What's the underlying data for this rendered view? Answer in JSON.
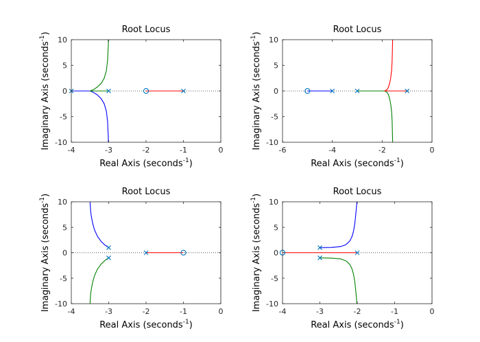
{
  "figure": {
    "background": "#ffffff"
  },
  "colors": {
    "axis": "#262626",
    "tick_label": "#262626",
    "zero_line": "#262626",
    "branch_blue": "#0000ff",
    "branch_green": "#008000",
    "branch_red": "#ff0000",
    "marker": "#0072bd"
  },
  "icons": {
    "pole": "x-mark",
    "zero": "circle-mark"
  },
  "chart_data": [
    {
      "type": "line",
      "title": "Root Locus",
      "xlabel": "Real Axis (seconds",
      "ylabel": "Imaginary Axis (seconds",
      "axis_unit_exponent": "-1",
      "xlim": [
        -4,
        0
      ],
      "ylim": [
        -10,
        10
      ],
      "xticks": [
        -4,
        -3,
        -2,
        -1,
        0
      ],
      "yticks": [
        -10,
        -5,
        0,
        5,
        10
      ],
      "poles": [
        [
          -4,
          0
        ],
        [
          -3,
          0
        ],
        [
          -1,
          0
        ]
      ],
      "zeros": [
        [
          -2,
          0
        ]
      ],
      "series": [
        {
          "color": "blue",
          "x": [
            -4,
            -3.85,
            -3.7,
            -3.56,
            -3.5,
            -3.4,
            -3.3,
            -3.2,
            -3.12,
            -3.06,
            -3.03,
            -3.02,
            -3.01,
            -3.01
          ],
          "y": [
            0,
            0,
            0,
            0,
            0,
            -0.3,
            -0.8,
            -1.5,
            -2.5,
            -4,
            -6,
            -7.5,
            -9,
            -10
          ]
        },
        {
          "color": "green",
          "x": [
            -3,
            -3.15,
            -3.3,
            -3.44,
            -3.5,
            -3.4,
            -3.3,
            -3.2,
            -3.12,
            -3.06,
            -3.03,
            -3.02,
            -3.01,
            -3.01
          ],
          "y": [
            0,
            0,
            0,
            0,
            0,
            0.3,
            0.8,
            1.5,
            2.5,
            4,
            6,
            7.5,
            9,
            10
          ]
        },
        {
          "color": "red",
          "x": [
            -1,
            -1.5,
            -2
          ],
          "y": [
            0,
            0,
            0
          ]
        }
      ]
    },
    {
      "type": "line",
      "title": "Root Locus",
      "xlabel": "Real Axis (seconds",
      "ylabel": "Imaginary Axis (seconds",
      "axis_unit_exponent": "-1",
      "xlim": [
        -6,
        0
      ],
      "ylim": [
        -10,
        10
      ],
      "xticks": [
        -6,
        -4,
        -2,
        0
      ],
      "yticks": [
        -10,
        -5,
        0,
        5,
        10
      ],
      "poles": [
        [
          -4,
          0
        ],
        [
          -3,
          0
        ],
        [
          -1,
          0
        ]
      ],
      "zeros": [
        [
          -5,
          0
        ]
      ],
      "series": [
        {
          "color": "blue",
          "x": [
            -4,
            -4.5,
            -5
          ],
          "y": [
            0,
            0,
            0
          ]
        },
        {
          "color": "green",
          "x": [
            -3,
            -2.6,
            -2.2,
            -2.0,
            -1.9,
            -1.8,
            -1.75,
            -1.7,
            -1.66,
            -1.62,
            -1.6,
            -1.58
          ],
          "y": [
            0,
            0,
            0,
            0,
            0,
            -0.3,
            -0.7,
            -1.5,
            -2.5,
            -4,
            -6,
            -10
          ]
        },
        {
          "color": "red",
          "x": [
            -1,
            -1.4,
            -1.8,
            -1.9,
            -1.8,
            -1.75,
            -1.7,
            -1.66,
            -1.62,
            -1.6,
            -1.58
          ],
          "y": [
            0,
            0,
            0,
            0,
            0.3,
            0.7,
            1.5,
            2.5,
            4,
            6,
            10
          ]
        }
      ]
    },
    {
      "type": "line",
      "title": "Root Locus",
      "xlabel": "Real Axis (seconds",
      "ylabel": "Imaginary Axis (seconds",
      "axis_unit_exponent": "-1",
      "xlim": [
        -4,
        0
      ],
      "ylim": [
        -10,
        10
      ],
      "xticks": [
        -4,
        -3,
        -2,
        -1,
        0
      ],
      "yticks": [
        -10,
        -5,
        0,
        5,
        10
      ],
      "poles": [
        [
          -3,
          1
        ],
        [
          -3,
          -1
        ],
        [
          -2,
          0
        ]
      ],
      "zeros": [
        [
          -1,
          0
        ]
      ],
      "series": [
        {
          "color": "blue",
          "x": [
            -3,
            -3.1,
            -3.2,
            -3.3,
            -3.38,
            -3.43,
            -3.46,
            -3.48,
            -3.49,
            -3.5
          ],
          "y": [
            1,
            1.5,
            2.2,
            3.2,
            4.5,
            5.8,
            7.0,
            8.0,
            9.0,
            10
          ]
        },
        {
          "color": "green",
          "x": [
            -3,
            -3.1,
            -3.2,
            -3.3,
            -3.38,
            -3.43,
            -3.46,
            -3.48,
            -3.49,
            -3.5
          ],
          "y": [
            -1,
            -1.5,
            -2.2,
            -3.2,
            -4.5,
            -5.8,
            -7.0,
            -8.0,
            -9.0,
            -10
          ]
        },
        {
          "color": "red",
          "x": [
            -2,
            -1.5,
            -1
          ],
          "y": [
            0,
            0,
            0
          ]
        }
      ]
    },
    {
      "type": "line",
      "title": "Root Locus",
      "xlabel": "Real Axis (seconds",
      "ylabel": "Imaginary Axis (seconds",
      "axis_unit_exponent": "-1",
      "xlim": [
        -4,
        0
      ],
      "ylim": [
        -10,
        10
      ],
      "xticks": [
        -4,
        -3,
        -2,
        -1,
        0
      ],
      "yticks": [
        -10,
        -5,
        0,
        5,
        10
      ],
      "poles": [
        [
          -3,
          1
        ],
        [
          -3,
          -1
        ],
        [
          -2,
          0
        ]
      ],
      "zeros": [
        [
          -4,
          0
        ]
      ],
      "series": [
        {
          "color": "blue",
          "x": [
            -3,
            -2.7,
            -2.45,
            -2.3,
            -2.2,
            -2.14,
            -2.1,
            -2.07,
            -2.05,
            -2.03,
            -2.01
          ],
          "y": [
            1,
            1.05,
            1.2,
            1.6,
            2.3,
            3.2,
            4.2,
            5.5,
            6.8,
            8.3,
            10
          ]
        },
        {
          "color": "green",
          "x": [
            -3,
            -2.7,
            -2.45,
            -2.3,
            -2.2,
            -2.14,
            -2.1,
            -2.07,
            -2.05,
            -2.03,
            -2.01
          ],
          "y": [
            -1,
            -1.05,
            -1.2,
            -1.6,
            -2.3,
            -3.2,
            -4.2,
            -5.5,
            -6.8,
            -8.3,
            -10
          ]
        },
        {
          "color": "red",
          "x": [
            -2,
            -3,
            -4
          ],
          "y": [
            0,
            0,
            0
          ]
        }
      ]
    }
  ]
}
